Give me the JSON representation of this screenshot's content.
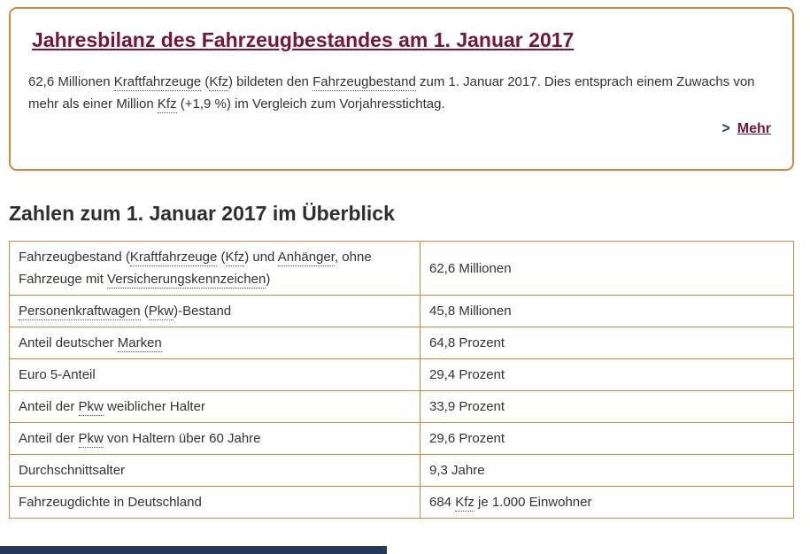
{
  "colors": {
    "accent_orange": "#cc8a3e",
    "link_maroon": "#771635",
    "arrow_blue": "#27416f",
    "body_text": "#333333",
    "bottom_bar": "#233a59"
  },
  "teaser": {
    "title": "Jahresbilanz des Fahrzeugbestandes am 1. Januar 2017",
    "paragraph": [
      {
        "t": "62,6 Millionen "
      },
      {
        "t": "Kraftfahrzeuge",
        "u": true
      },
      {
        "t": " ("
      },
      {
        "t": "Kfz",
        "u": true
      },
      {
        "t": ") bildeten den "
      },
      {
        "t": "Fahrzeugbestand",
        "u": true
      },
      {
        "t": " zum 1. Januar 2017. Dies entsprach einem Zuwachs von mehr als einer Million "
      },
      {
        "t": "Kfz",
        "u": true
      },
      {
        "t": " (+1,9 %) im Vergleich zum Vorjahresstichtag."
      }
    ],
    "more_arrow": ">",
    "more_label": "Mehr"
  },
  "overview": {
    "heading": "Zahlen zum 1. Januar 2017 im Überblick",
    "rows": [
      {
        "tall": true,
        "label": [
          {
            "t": "Fahrzeugbestand ("
          },
          {
            "t": "Kraftfahrzeuge",
            "u": true
          },
          {
            "t": " ("
          },
          {
            "t": "Kfz",
            "u": true
          },
          {
            "t": ") und "
          },
          {
            "t": "Anhänger",
            "u": true
          },
          {
            "t": ", ohne Fahrzeuge mit "
          },
          {
            "t": "Versicherungskennzeichen",
            "u": true
          },
          {
            "t": ")"
          }
        ],
        "value": [
          {
            "t": "62,6 Millionen"
          }
        ]
      },
      {
        "label": [
          {
            "t": "Personenkraftwagen",
            "u": true
          },
          {
            "t": " ("
          },
          {
            "t": "Pkw",
            "u": true
          },
          {
            "t": ")-Bestand"
          }
        ],
        "value": [
          {
            "t": "45,8 Millionen"
          }
        ]
      },
      {
        "label": [
          {
            "t": "Anteil deutscher "
          },
          {
            "t": "Marken",
            "u": true
          }
        ],
        "value": [
          {
            "t": "64,8 Prozent"
          }
        ]
      },
      {
        "label": [
          {
            "t": "Euro 5-Anteil"
          }
        ],
        "value": [
          {
            "t": "29,4 Prozent"
          }
        ]
      },
      {
        "label": [
          {
            "t": "Anteil der "
          },
          {
            "t": "Pkw",
            "u": true
          },
          {
            "t": " weiblicher Halter"
          }
        ],
        "value": [
          {
            "t": "33,9 Prozent"
          }
        ]
      },
      {
        "label": [
          {
            "t": "Anteil der "
          },
          {
            "t": "Pkw",
            "u": true
          },
          {
            "t": " von Haltern über 60 Jahre"
          }
        ],
        "value": [
          {
            "t": "29,6 Prozent"
          }
        ]
      },
      {
        "label": [
          {
            "t": "Durchschnittsalter"
          }
        ],
        "value": [
          {
            "t": "9,3 Jahre"
          }
        ]
      },
      {
        "label": [
          {
            "t": "Fahrzeugdichte in Deutschland"
          }
        ],
        "value": [
          {
            "t": "684 "
          },
          {
            "t": "Kfz",
            "u": true
          },
          {
            "t": " je 1.000 Einwohner"
          }
        ]
      }
    ]
  }
}
